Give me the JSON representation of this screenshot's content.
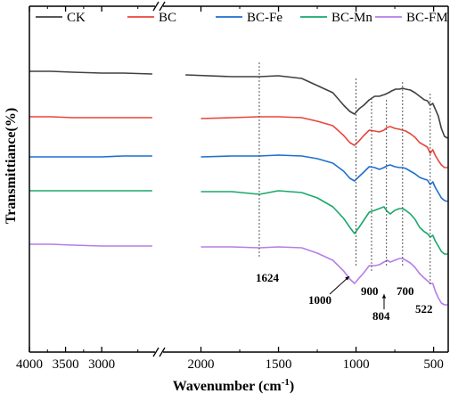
{
  "chart_data": {
    "type": "line",
    "title": "",
    "xlabel": "Wavenumber (cm",
    "xlabel_sup": "-1",
    "xlabel_close": ")",
    "ylabel": "Transmittiance(%)",
    "x_axis": {
      "reversed": true,
      "broken": true,
      "segments": [
        [
          4000,
          2250
        ],
        [
          2250,
          400
        ]
      ]
    },
    "xlim": [
      4000,
      400
    ],
    "yticks_shown": false,
    "grid": false,
    "legend_position": "top",
    "xtick_labels": [
      {
        "value": 4000,
        "label": "4000"
      },
      {
        "value": 3500,
        "label": "3500"
      },
      {
        "value": 3000,
        "label": "3000"
      },
      {
        "value": 2000,
        "label": "2000"
      },
      {
        "value": 1500,
        "label": "1500"
      },
      {
        "value": 1000,
        "label": "1000"
      },
      {
        "value": 500,
        "label": "500"
      }
    ],
    "xtick_minor": [
      3750,
      3250,
      2500,
      1750,
      1250,
      750
    ],
    "series": [
      {
        "name": "CK",
        "color": "#404040",
        "points": [
          [
            4000,
            80
          ],
          [
            3700,
            80
          ],
          [
            3400,
            81
          ],
          [
            3000,
            82
          ],
          [
            2700,
            82
          ],
          [
            2300,
            83
          ],
          [
            2100,
            84
          ],
          [
            1800,
            86
          ],
          [
            1624,
            86
          ],
          [
            1500,
            85
          ],
          [
            1350,
            88
          ],
          [
            1250,
            96
          ],
          [
            1150,
            104
          ],
          [
            1080,
            118
          ],
          [
            1040,
            125
          ],
          [
            1010,
            128
          ],
          [
            980,
            122
          ],
          [
            950,
            118
          ],
          [
            915,
            112
          ],
          [
            880,
            108
          ],
          [
            850,
            108
          ],
          [
            815,
            106
          ],
          [
            790,
            104
          ],
          [
            770,
            102
          ],
          [
            745,
            100
          ],
          [
            720,
            100
          ],
          [
            700,
            99
          ],
          [
            680,
            100
          ],
          [
            650,
            101
          ],
          [
            620,
            104
          ],
          [
            590,
            108
          ],
          [
            560,
            112
          ],
          [
            540,
            113
          ],
          [
            522,
            118
          ],
          [
            505,
            116
          ],
          [
            490,
            122
          ],
          [
            470,
            130
          ],
          [
            450,
            144
          ],
          [
            430,
            153
          ],
          [
            410,
            155
          ]
        ]
      },
      {
        "name": "BC",
        "color": "#e8453c",
        "points": [
          [
            4000,
            131
          ],
          [
            3700,
            131
          ],
          [
            3400,
            132
          ],
          [
            3000,
            132
          ],
          [
            2700,
            132
          ],
          [
            2300,
            132
          ],
          [
            2000,
            133
          ],
          [
            1800,
            132
          ],
          [
            1624,
            131
          ],
          [
            1500,
            131
          ],
          [
            1350,
            132
          ],
          [
            1250,
            136
          ],
          [
            1150,
            141
          ],
          [
            1080,
            152
          ],
          [
            1040,
            160
          ],
          [
            1010,
            163
          ],
          [
            980,
            158
          ],
          [
            950,
            152
          ],
          [
            915,
            146
          ],
          [
            880,
            147
          ],
          [
            850,
            148
          ],
          [
            820,
            146
          ],
          [
            800,
            143
          ],
          [
            780,
            142
          ],
          [
            750,
            144
          ],
          [
            720,
            145
          ],
          [
            700,
            146
          ],
          [
            680,
            147
          ],
          [
            650,
            150
          ],
          [
            620,
            154
          ],
          [
            590,
            160
          ],
          [
            560,
            163
          ],
          [
            540,
            165
          ],
          [
            522,
            172
          ],
          [
            505,
            168
          ],
          [
            490,
            174
          ],
          [
            470,
            180
          ],
          [
            450,
            185
          ],
          [
            430,
            188
          ],
          [
            410,
            188
          ]
        ]
      },
      {
        "name": "BC-Fe",
        "color": "#1e6fcf",
        "points": [
          [
            4000,
            176
          ],
          [
            3700,
            176
          ],
          [
            3400,
            176
          ],
          [
            3000,
            176
          ],
          [
            2700,
            175
          ],
          [
            2300,
            175
          ],
          [
            2000,
            176
          ],
          [
            1800,
            175
          ],
          [
            1624,
            175
          ],
          [
            1500,
            174
          ],
          [
            1350,
            175
          ],
          [
            1250,
            178
          ],
          [
            1150,
            183
          ],
          [
            1080,
            192
          ],
          [
            1040,
            200
          ],
          [
            1010,
            203
          ],
          [
            980,
            198
          ],
          [
            950,
            193
          ],
          [
            915,
            187
          ],
          [
            880,
            188
          ],
          [
            850,
            190
          ],
          [
            820,
            188
          ],
          [
            800,
            186
          ],
          [
            780,
            185
          ],
          [
            750,
            187
          ],
          [
            720,
            188
          ],
          [
            700,
            188
          ],
          [
            680,
            189
          ],
          [
            650,
            192
          ],
          [
            620,
            195
          ],
          [
            590,
            199
          ],
          [
            560,
            201
          ],
          [
            540,
            202
          ],
          [
            522,
            207
          ],
          [
            505,
            204
          ],
          [
            490,
            210
          ],
          [
            470,
            216
          ],
          [
            450,
            222
          ],
          [
            430,
            225
          ],
          [
            410,
            226
          ]
        ]
      },
      {
        "name": "BC-Mn",
        "color": "#1aa86b",
        "points": [
          [
            4000,
            214
          ],
          [
            3700,
            214
          ],
          [
            3400,
            214
          ],
          [
            3000,
            214
          ],
          [
            2700,
            214
          ],
          [
            2300,
            214
          ],
          [
            2000,
            215
          ],
          [
            1800,
            215
          ],
          [
            1624,
            218
          ],
          [
            1500,
            214
          ],
          [
            1350,
            216
          ],
          [
            1250,
            222
          ],
          [
            1150,
            232
          ],
          [
            1080,
            245
          ],
          [
            1040,
            255
          ],
          [
            1010,
            262
          ],
          [
            980,
            255
          ],
          [
            950,
            247
          ],
          [
            915,
            238
          ],
          [
            880,
            236
          ],
          [
            850,
            234
          ],
          [
            820,
            232
          ],
          [
            800,
            237
          ],
          [
            780,
            240
          ],
          [
            750,
            236
          ],
          [
            720,
            234
          ],
          [
            700,
            234
          ],
          [
            680,
            236
          ],
          [
            650,
            240
          ],
          [
            620,
            246
          ],
          [
            590,
            255
          ],
          [
            560,
            260
          ],
          [
            540,
            262
          ],
          [
            522,
            266
          ],
          [
            505,
            264
          ],
          [
            490,
            270
          ],
          [
            470,
            276
          ],
          [
            450,
            282
          ],
          [
            430,
            285
          ],
          [
            410,
            285
          ]
        ]
      },
      {
        "name": "BC-FM",
        "color": "#b57ee8",
        "points": [
          [
            4000,
            274
          ],
          [
            3700,
            274
          ],
          [
            3400,
            275
          ],
          [
            3000,
            276
          ],
          [
            2700,
            276
          ],
          [
            2300,
            276
          ],
          [
            2000,
            277
          ],
          [
            1800,
            277
          ],
          [
            1624,
            278
          ],
          [
            1500,
            277
          ],
          [
            1350,
            278
          ],
          [
            1250,
            284
          ],
          [
            1150,
            292
          ],
          [
            1080,
            304
          ],
          [
            1040,
            313
          ],
          [
            1010,
            318
          ],
          [
            980,
            312
          ],
          [
            950,
            306
          ],
          [
            915,
            298
          ],
          [
            880,
            298
          ],
          [
            850,
            297
          ],
          [
            820,
            294
          ],
          [
            800,
            292
          ],
          [
            780,
            294
          ],
          [
            750,
            292
          ],
          [
            720,
            290
          ],
          [
            700,
            290
          ],
          [
            680,
            292
          ],
          [
            650,
            295
          ],
          [
            620,
            300
          ],
          [
            590,
            307
          ],
          [
            560,
            312
          ],
          [
            540,
            315
          ],
          [
            522,
            318
          ],
          [
            505,
            318
          ],
          [
            490,
            326
          ],
          [
            470,
            334
          ],
          [
            450,
            340
          ],
          [
            430,
            342
          ],
          [
            410,
            342
          ]
        ]
      }
    ],
    "reference_lines": [
      {
        "label": "1624",
        "x": 1624
      },
      {
        "label": "1000",
        "x": 1000
      },
      {
        "label": "900",
        "x": 900
      },
      {
        "label": "804",
        "x": 804
      },
      {
        "label": "700",
        "x": 700
      },
      {
        "label": "522",
        "x": 522
      }
    ],
    "annotations": [
      {
        "label": "1624",
        "points_to": 1624
      },
      {
        "label": "1000",
        "points_to": 1000
      },
      {
        "label": "900",
        "points_to": 900
      },
      {
        "label": "804",
        "points_to": 804
      },
      {
        "label": "700",
        "points_to": 700
      },
      {
        "label": "522",
        "points_to": 522
      }
    ]
  }
}
